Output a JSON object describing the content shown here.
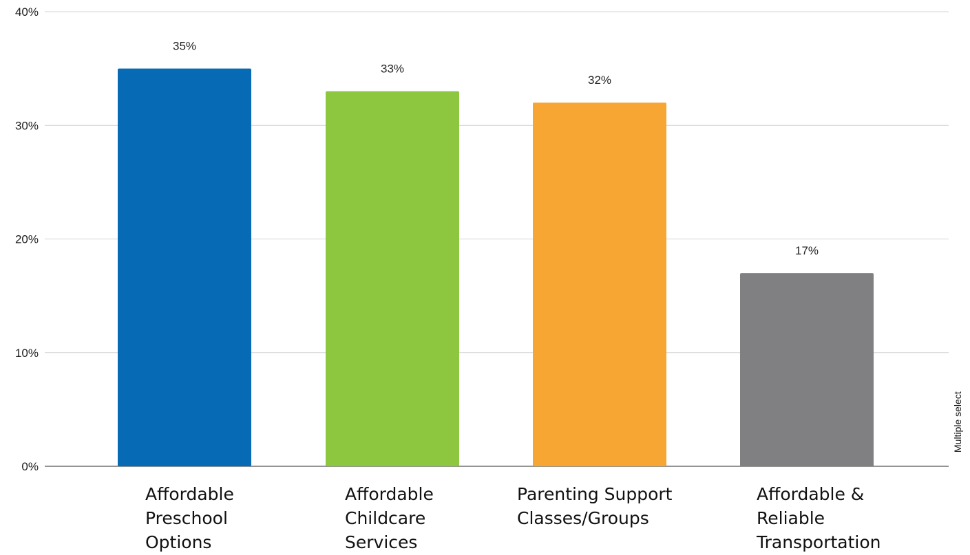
{
  "chart_data": {
    "type": "bar",
    "categories": [
      [
        "Affordable",
        "Preschool",
        "Options"
      ],
      [
        "Affordable",
        "Childcare",
        "Services"
      ],
      [
        "Parenting Support",
        "Classes/Groups"
      ],
      [
        "Affordable &",
        "Reliable",
        "Transportation"
      ]
    ],
    "values": [
      35,
      33,
      32,
      17
    ],
    "data_labels": [
      "35%",
      "33%",
      "32%",
      "17%"
    ],
    "colors": [
      "#076AB4",
      "#8DC63F",
      "#F7A533",
      "#808083"
    ],
    "ylim": [
      0,
      40
    ],
    "yticks": [
      0,
      10,
      20,
      30,
      40
    ],
    "ytick_labels": [
      "0%",
      "10%",
      "20%",
      "30%",
      "40%"
    ],
    "grid": true,
    "title": "",
    "xlabel": "",
    "ylabel": "",
    "side_note": "Multiple select"
  }
}
